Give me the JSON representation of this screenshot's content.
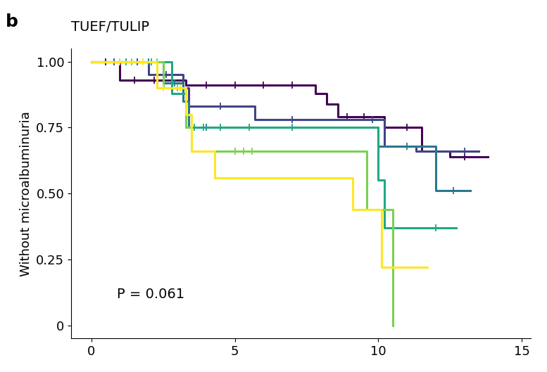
{
  "chart_data": {
    "type": "line",
    "panel_label": "b",
    "title": "TUEF/TULIP",
    "y_label": "Without microalbuminuria",
    "annotation": "P = 0.061",
    "line_style": "steps",
    "marker": "+",
    "series": [
      {
        "color": "#440154",
        "x": [
          0,
          1.0,
          3.3,
          7.8,
          8.2,
          8.6,
          10.2,
          11.5,
          12.5,
          13.8
        ],
        "values": [
          1.0,
          0.93,
          0.91,
          0.88,
          0.84,
          0.79,
          0.75,
          0.66,
          0.64,
          0.64
        ],
        "censored": [
          0.5,
          1.5,
          2.2,
          4.0,
          5.0,
          6.0,
          7.0,
          8.9,
          9.5,
          11.0,
          13.0
        ]
      },
      {
        "color": "#414487",
        "x": [
          0,
          2.0,
          3.2,
          3.4,
          5.7,
          10.2,
          11.3,
          13.5
        ],
        "values": [
          1.0,
          0.95,
          0.9,
          0.83,
          0.78,
          0.68,
          0.66,
          0.66
        ],
        "censored": [
          0.8,
          1.6,
          2.6,
          4.5,
          7.0,
          9.8,
          12.0,
          13.0
        ]
      },
      {
        "color": "#2a788e",
        "x": [
          0,
          2.5,
          3.2,
          3.4,
          10.0,
          12.0,
          13.2
        ],
        "values": [
          1.0,
          0.92,
          0.85,
          0.75,
          0.68,
          0.51,
          0.51
        ],
        "censored": [
          1.0,
          2.0,
          2.9,
          4.0,
          11.0,
          12.6
        ]
      },
      {
        "color": "#22a884",
        "x": [
          0,
          2.8,
          3.3,
          10.0,
          10.2,
          12.7
        ],
        "values": [
          1.0,
          0.88,
          0.75,
          0.55,
          0.37,
          0.37
        ],
        "censored": [
          1.2,
          2.1,
          3.6,
          3.9,
          4.5,
          5.5,
          7.0,
          12.0
        ]
      },
      {
        "color": "#7ad151",
        "x": [
          0,
          2.5,
          3.3,
          3.5,
          9.6,
          10.5
        ],
        "values": [
          1.0,
          0.9,
          0.75,
          0.66,
          0.44,
          0.0
        ],
        "censored": [
          1.4,
          2.3,
          3.0,
          5.0,
          5.3,
          5.6
        ]
      },
      {
        "color": "#fde725",
        "x": [
          0,
          2.3,
          3.3,
          3.5,
          4.3,
          9.1,
          10.1,
          11.7
        ],
        "values": [
          1.0,
          0.9,
          0.8,
          0.66,
          0.56,
          0.44,
          0.22,
          0.22
        ],
        "censored": [
          1.0,
          1.8,
          2.5,
          3.1
        ]
      }
    ],
    "xlim": [
      -0.7,
      15.3
    ],
    "ylim": [
      -0.05,
      1.05
    ],
    "xticks": [
      0,
      5,
      10,
      15
    ],
    "yticks": [
      0,
      0.25,
      {
        "value": 0.5,
        "label": "0.50"
      },
      0.75,
      {
        "value": 1.0,
        "label": "1.00"
      }
    ],
    "grid": false
  }
}
